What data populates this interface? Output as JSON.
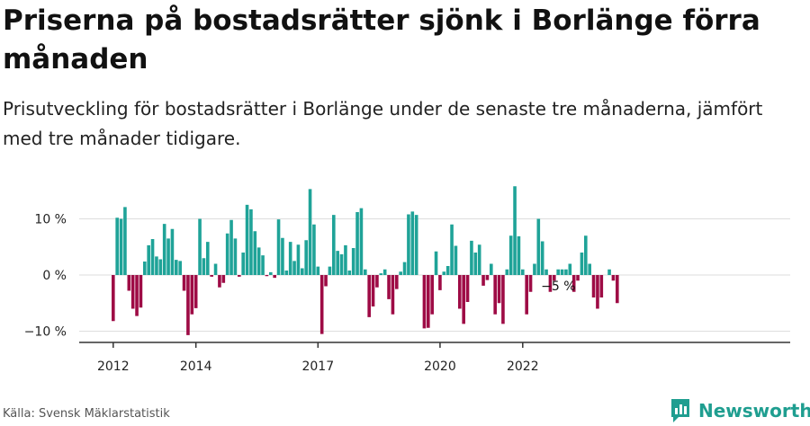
{
  "title": "Priserna på bostadsrätter sjönk i Borlänge förra månaden",
  "subtitle": "Prisutveckling för bostadsrätter i Borlänge under de senaste tre månaderna, jämfört med tre månader tidigare.",
  "source": "Källa: Svensk Mäklarstatistik",
  "brand": {
    "name": "Newsworthy",
    "icon": "newsworthy-logo-icon"
  },
  "colors": {
    "positive": "#1fa398",
    "negative": "#9e0b45",
    "grid": "#dddddd",
    "axis": "#333333"
  },
  "chart_data": {
    "type": "bar",
    "title": "Priserna på bostadsrätter sjönk i Borlänge förra månaden",
    "ylabel": "",
    "ylim": [
      -12,
      17
    ],
    "y_ticks": [
      10,
      0,
      -10
    ],
    "y_tick_labels": [
      "10 %",
      "0 %",
      "−10 %"
    ],
    "x_tick_labels": [
      {
        "label": "2012",
        "index": 0
      },
      {
        "label": "2014",
        "index": 21
      },
      {
        "label": "2017",
        "index": 52
      },
      {
        "label": "2020",
        "index": 83
      },
      {
        "label": "2022",
        "index": 104
      }
    ],
    "annotation": {
      "text": "−5 %",
      "index": 113
    },
    "values": [
      -8.2,
      10.2,
      10.0,
      12.1,
      -2.8,
      -6.0,
      -7.3,
      -5.8,
      2.4,
      5.3,
      6.4,
      3.3,
      2.8,
      9.1,
      6.5,
      8.2,
      2.7,
      2.5,
      -2.8,
      -10.7,
      -7.0,
      -5.9,
      10.0,
      3.0,
      5.9,
      -0.3,
      2.0,
      -2.2,
      -1.4,
      7.4,
      9.8,
      6.5,
      -0.3,
      4.0,
      12.5,
      11.7,
      7.8,
      4.9,
      3.5,
      -0.2,
      0.5,
      -0.5,
      9.9,
      6.6,
      0.8,
      5.9,
      2.5,
      5.4,
      1.2,
      6.2,
      15.3,
      9.0,
      1.5,
      -10.5,
      -2.0,
      1.5,
      10.7,
      4.3,
      3.7,
      5.3,
      0.8,
      4.8,
      11.2,
      11.9,
      1.0,
      -7.5,
      -5.6,
      -2.2,
      0.3,
      1.0,
      -4.3,
      -7.0,
      -2.5,
      0.6,
      2.3,
      10.8,
      11.3,
      10.7,
      0.0,
      -9.5,
      -9.4,
      -7.0,
      4.2,
      -2.7,
      0.6,
      1.6,
      9.0,
      5.2,
      -6.0,
      -8.7,
      -4.8,
      6.1,
      4.0,
      5.4,
      -1.9,
      -0.9,
      2.0,
      -7.0,
      -5.0,
      -8.7,
      1.0,
      7.0,
      15.8,
      6.9,
      1.0,
      -7.0,
      -3.0,
      2.0,
      10.0,
      6.0,
      1.0,
      -3.0,
      -1.0,
      1.0,
      1.0,
      1.0,
      2.0,
      -3.0,
      -1.0,
      4.0,
      7.0,
      2.0,
      -4.0,
      -6.0,
      -4.0,
      0.0,
      1.0,
      -1.0,
      -5.0
    ]
  }
}
